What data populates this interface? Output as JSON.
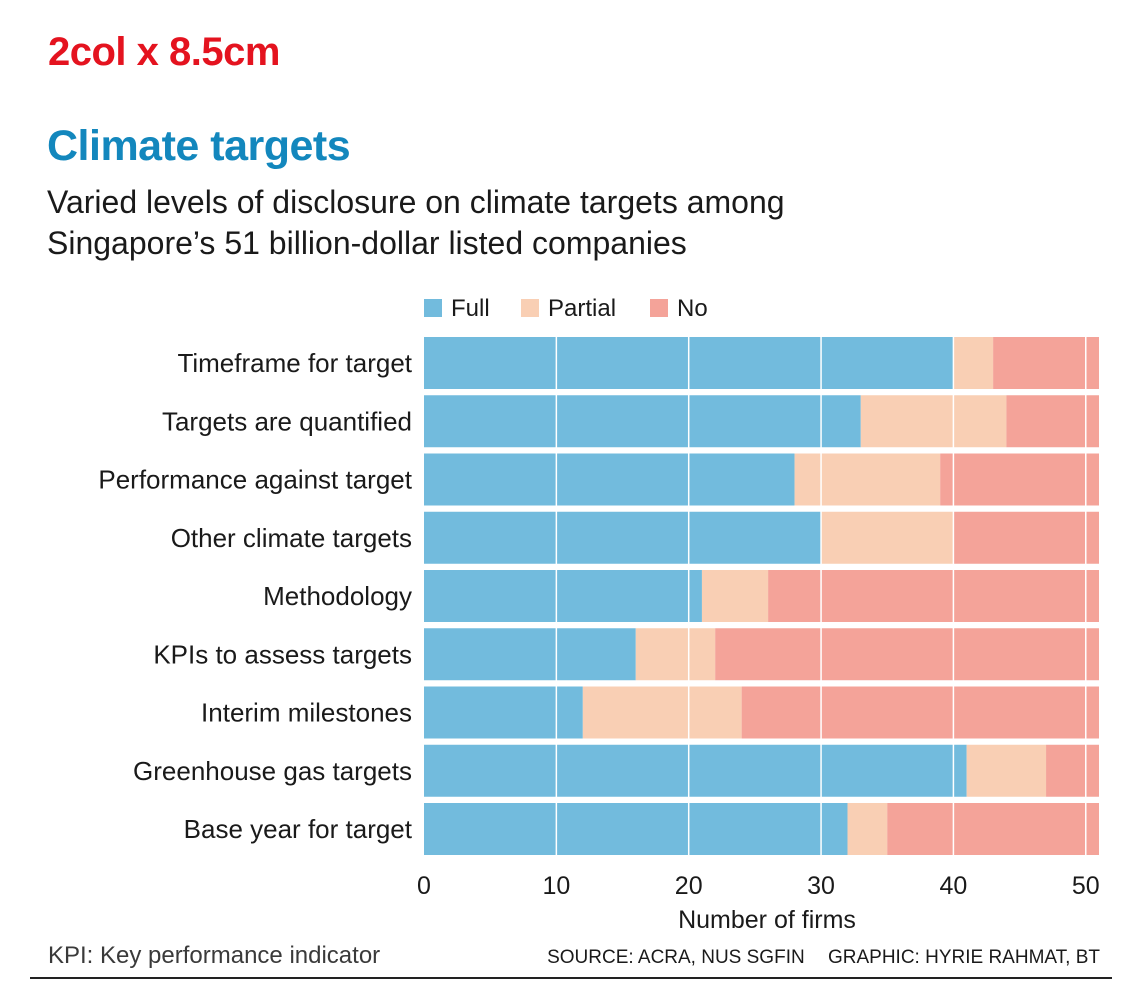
{
  "header": {
    "spec_label": "2col x 8.5cm",
    "title": "Climate targets",
    "subtitle": "Varied levels of disclosure on climate targets among Singapore’s 51 billion-dollar listed companies"
  },
  "colors": {
    "full": "#72bbdd",
    "partial": "#f9cfb4",
    "no": "#f4a399",
    "gridline": "#ffffff"
  },
  "chart_data": {
    "type": "bar",
    "orientation": "horizontal",
    "stacked": true,
    "categories": [
      "Timeframe for target",
      "Targets are quantified",
      "Performance against target",
      "Other climate targets",
      "Methodology",
      "KPIs to assess targets",
      "Interim milestones",
      "Greenhouse gas targets",
      "Base year for target"
    ],
    "series": [
      {
        "name": "Full",
        "values": [
          40,
          33,
          28,
          30,
          21,
          16,
          12,
          41,
          32
        ]
      },
      {
        "name": "Partial",
        "values": [
          3,
          11,
          11,
          10,
          5,
          6,
          12,
          6,
          3
        ]
      },
      {
        "name": "No",
        "values": [
          8,
          7,
          12,
          11,
          25,
          29,
          27,
          4,
          16
        ]
      }
    ],
    "xlabel": "Number of firms",
    "ylabel": "",
    "xlim": [
      0,
      51
    ],
    "xticks": [
      0,
      10,
      20,
      30,
      40,
      50
    ],
    "legend_position": "top",
    "grid": true
  },
  "footer": {
    "note": "KPI: Key performance indicator",
    "source": "SOURCE: ACRA, NUS SGFIN",
    "graphic": "GRAPHIC: HYRIE RAHMAT, BT"
  }
}
